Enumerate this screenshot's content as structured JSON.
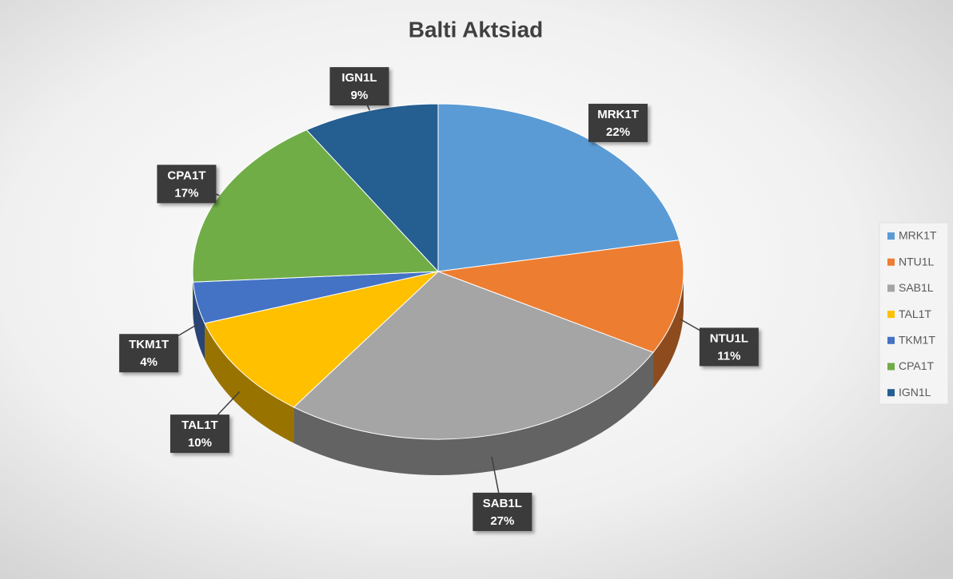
{
  "chart_data": {
    "type": "pie",
    "title": "Balti Aktsiad",
    "categories": [
      "MRK1T",
      "NTU1L",
      "SAB1L",
      "TAL1T",
      "TKM1T",
      "CPA1T",
      "IGN1L"
    ],
    "values": [
      22,
      11,
      27,
      10,
      4,
      17,
      9
    ],
    "value_labels": [
      "22%",
      "11%",
      "27%",
      "10%",
      "4%",
      "17%",
      "9%"
    ],
    "colors": [
      "#5b9bd5",
      "#ed7d31",
      "#a5a5a5",
      "#ffc000",
      "#4472c4",
      "#70ad47",
      "#255e91"
    ],
    "legend": "right"
  }
}
